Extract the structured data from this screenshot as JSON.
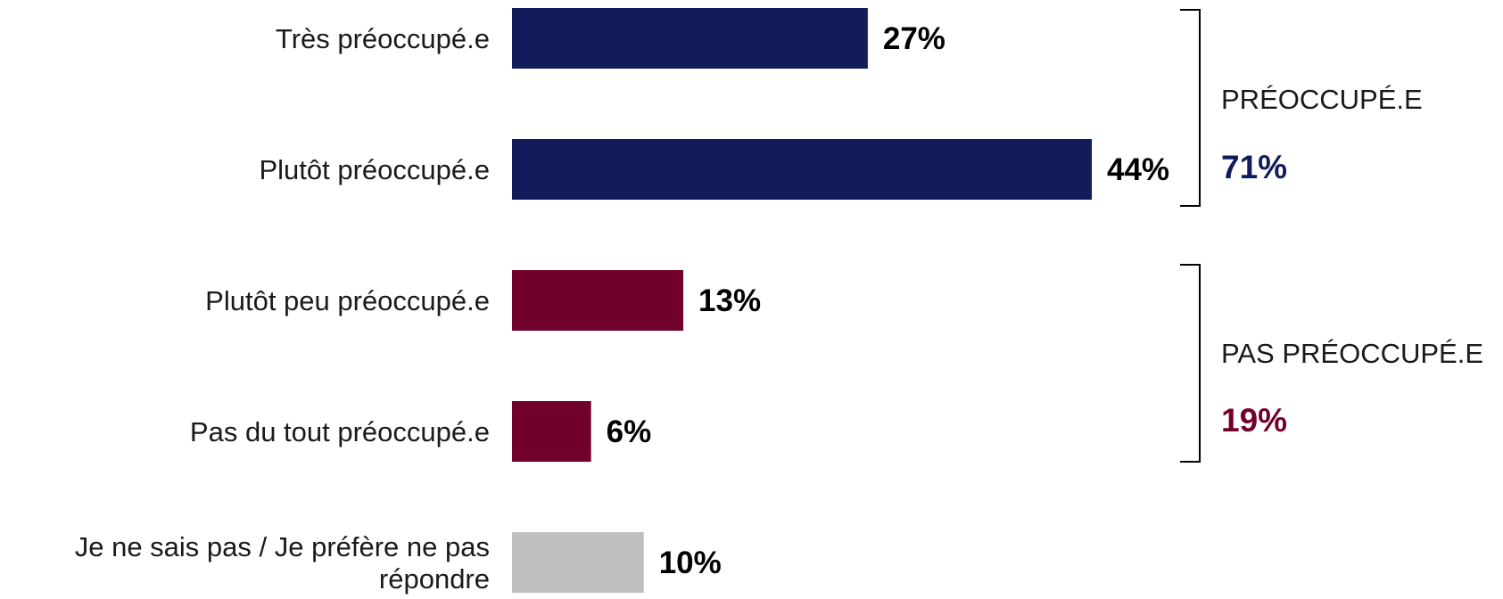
{
  "chart_data": {
    "type": "bar",
    "orientation": "horizontal",
    "categories": [
      [
        "Très préoccupé.e"
      ],
      [
        "Plutôt préoccupé.e"
      ],
      [
        "Plutôt peu préoccupé.e"
      ],
      [
        "Pas du tout préoccupé.e"
      ],
      [
        "Je ne sais pas / Je préfère ne pas",
        "répondre"
      ]
    ],
    "values": [
      27,
      44,
      13,
      6,
      10
    ],
    "value_labels": [
      "27%",
      "44%",
      "13%",
      "6%",
      "10%"
    ],
    "bar_colors": [
      "#131c5a",
      "#131c5a",
      "#72002c",
      "#72002c",
      "#bfbfbf"
    ],
    "xlim": [
      0,
      44
    ],
    "title": "",
    "xlabel": "",
    "ylabel": "",
    "grid": false,
    "groups": [
      {
        "title": "PRÉOCCUPÉ.E",
        "value_label": "71%",
        "value": 71,
        "color": "#131c5a",
        "rows": [
          0,
          1
        ]
      },
      {
        "title": "PAS PRÉOCCUPÉ.E",
        "value_label": "19%",
        "value": 19,
        "color": "#72002c",
        "rows": [
          2,
          3
        ]
      }
    ]
  }
}
